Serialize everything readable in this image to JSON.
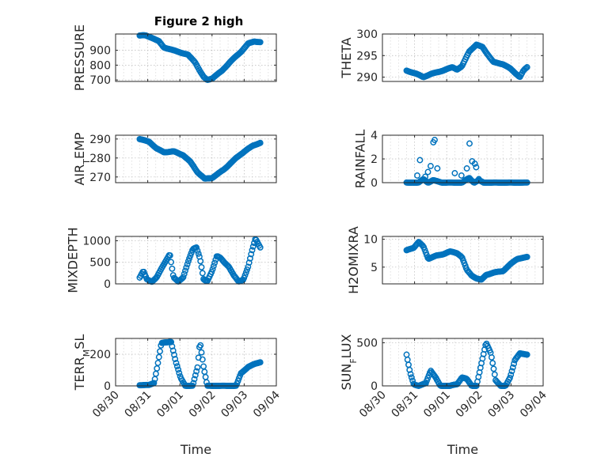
{
  "figure": {
    "title": "Figure 2 high",
    "colors": {
      "series": "#0072bd",
      "axes": "#262626",
      "grid": "#b8b8b8",
      "background": "#ffffff"
    }
  },
  "chart_data": [
    {
      "type": "scatter",
      "title": "Figure 2 high",
      "xlabel": "",
      "ylabel": "PRESSURE",
      "xlim": [
        "2016-08-30",
        "2016-09-04"
      ],
      "ylim": [
        690,
        1010
      ],
      "yticks": [
        700,
        800,
        900
      ],
      "ytick_labels": [
        "700",
        "800",
        "900"
      ],
      "grid": true,
      "marker": "open-circle",
      "x_range": [
        "2016-08-30T18:00",
        "2016-09-03T12:00"
      ],
      "shape": [
        [
          0,
          1000
        ],
        [
          0.05,
          1000
        ],
        [
          0.1,
          985
        ],
        [
          0.16,
          960
        ],
        [
          0.2,
          920
        ],
        [
          0.26,
          905
        ],
        [
          0.32,
          890
        ],
        [
          0.4,
          870
        ],
        [
          0.46,
          820
        ],
        [
          0.5,
          760
        ],
        [
          0.53,
          720
        ],
        [
          0.56,
          700
        ],
        [
          0.6,
          710
        ],
        [
          0.68,
          760
        ],
        [
          0.76,
          830
        ],
        [
          0.84,
          890
        ],
        [
          0.9,
          945
        ],
        [
          0.95,
          960
        ],
        [
          1,
          955
        ]
      ]
    },
    {
      "type": "scatter",
      "xlabel": "",
      "ylabel": "THETA",
      "xlim": [
        "2016-08-30",
        "2016-09-04"
      ],
      "ylim": [
        289,
        300
      ],
      "yticks": [
        290,
        295,
        300
      ],
      "ytick_labels": [
        "290",
        "295",
        "300"
      ],
      "grid": true,
      "marker": "open-circle",
      "x_range": [
        "2016-08-30T18:00",
        "2016-09-03T12:00"
      ],
      "shape": [
        [
          0,
          291.5
        ],
        [
          0.08,
          290.8
        ],
        [
          0.14,
          290
        ],
        [
          0.2,
          290.7
        ],
        [
          0.3,
          291.5
        ],
        [
          0.38,
          292.3
        ],
        [
          0.42,
          291.8
        ],
        [
          0.46,
          292.5
        ],
        [
          0.52,
          296
        ],
        [
          0.58,
          297.5
        ],
        [
          0.63,
          297
        ],
        [
          0.68,
          295
        ],
        [
          0.72,
          293.5
        ],
        [
          0.8,
          293
        ],
        [
          0.86,
          292
        ],
        [
          0.9,
          291
        ],
        [
          0.94,
          290
        ],
        [
          0.97,
          291.5
        ],
        [
          1,
          292.3
        ]
      ]
    },
    {
      "type": "scatter",
      "xlabel": "",
      "ylabel": "AIR_TEMP",
      "xlim": [
        "2016-08-30",
        "2016-09-04"
      ],
      "ylim": [
        267,
        292
      ],
      "yticks": [
        270,
        280,
        290
      ],
      "ytick_labels": [
        "270",
        "280",
        "290"
      ],
      "grid": true,
      "marker": "open-circle",
      "x_range": [
        "2016-08-30T18:00",
        "2016-09-03T12:00"
      ],
      "shape": [
        [
          0,
          290
        ],
        [
          0.08,
          288.5
        ],
        [
          0.14,
          285
        ],
        [
          0.2,
          283
        ],
        [
          0.28,
          283.5
        ],
        [
          0.36,
          281.5
        ],
        [
          0.42,
          278
        ],
        [
          0.48,
          272.5
        ],
        [
          0.54,
          269
        ],
        [
          0.6,
          269.5
        ],
        [
          0.7,
          274
        ],
        [
          0.8,
          280
        ],
        [
          0.88,
          284
        ],
        [
          0.94,
          286.5
        ],
        [
          1,
          288
        ]
      ]
    },
    {
      "type": "scatter",
      "xlabel": "",
      "ylabel": "RAINFALL",
      "xlim": [
        "2016-08-30",
        "2016-09-04"
      ],
      "ylim": [
        0,
        4
      ],
      "yticks": [
        0,
        2,
        4
      ],
      "ytick_labels": [
        "0",
        "2",
        "4"
      ],
      "grid": true,
      "marker": "open-circle",
      "x_range": [
        "2016-08-30T18:00",
        "2016-09-03T12:00"
      ],
      "shape": [
        [
          0,
          0
        ],
        [
          0.1,
          0
        ],
        [
          0.14,
          0.3
        ],
        [
          0.18,
          0
        ],
        [
          0.22,
          0.2
        ],
        [
          0.3,
          0
        ],
        [
          0.38,
          0
        ],
        [
          0.46,
          0
        ],
        [
          0.52,
          0.4
        ],
        [
          0.56,
          0
        ],
        [
          0.6,
          0.2
        ],
        [
          0.64,
          0
        ],
        [
          0.7,
          0
        ],
        [
          1,
          0
        ]
      ],
      "spikes": [
        {
          "x": "2016-08-31T02:00",
          "y": 0.6
        },
        {
          "x": "2016-08-31T04:00",
          "y": 1.9
        },
        {
          "x": "2016-08-31T08:00",
          "y": 0.5
        },
        {
          "x": "2016-08-31T10:00",
          "y": 0.9
        },
        {
          "x": "2016-08-31T12:00",
          "y": 1.4
        },
        {
          "x": "2016-08-31T14:00",
          "y": 3.4
        },
        {
          "x": "2016-08-31T15:00",
          "y": 3.6
        },
        {
          "x": "2016-08-31T17:00",
          "y": 1.2
        },
        {
          "x": "2016-09-01T06:00",
          "y": 0.8
        },
        {
          "x": "2016-09-01T11:00",
          "y": 0.6
        },
        {
          "x": "2016-09-01T15:00",
          "y": 1.2
        },
        {
          "x": "2016-09-01T17:00",
          "y": 3.3
        },
        {
          "x": "2016-09-01T19:00",
          "y": 1.8
        },
        {
          "x": "2016-09-01T21:00",
          "y": 1.6
        },
        {
          "x": "2016-09-01T22:00",
          "y": 1.3
        },
        {
          "x": "2016-09-02T00:00",
          "y": 0.3
        }
      ]
    },
    {
      "type": "scatter",
      "xlabel": "",
      "ylabel": "MIXDEPTH",
      "xlim": [
        "2016-08-30",
        "2016-09-04"
      ],
      "ylim": [
        0,
        1100
      ],
      "yticks": [
        0,
        500,
        1000
      ],
      "ytick_labels": [
        "0",
        "500",
        "1000"
      ],
      "grid": true,
      "marker": "open-circle",
      "x_range": [
        "2016-08-30T18:00",
        "2016-09-03T12:00"
      ],
      "shape": [
        [
          0,
          150
        ],
        [
          0.03,
          300
        ],
        [
          0.06,
          100
        ],
        [
          0.1,
          50
        ],
        [
          0.14,
          150
        ],
        [
          0.18,
          350
        ],
        [
          0.22,
          550
        ],
        [
          0.25,
          700
        ],
        [
          0.28,
          150
        ],
        [
          0.32,
          50
        ],
        [
          0.36,
          150
        ],
        [
          0.4,
          500
        ],
        [
          0.44,
          800
        ],
        [
          0.47,
          850
        ],
        [
          0.5,
          600
        ],
        [
          0.53,
          100
        ],
        [
          0.56,
          50
        ],
        [
          0.6,
          300
        ],
        [
          0.64,
          650
        ],
        [
          0.67,
          600
        ],
        [
          0.7,
          500
        ],
        [
          0.74,
          400
        ],
        [
          0.78,
          200
        ],
        [
          0.82,
          50
        ],
        [
          0.86,
          100
        ],
        [
          0.9,
          400
        ],
        [
          0.93,
          750
        ],
        [
          0.96,
          1050
        ],
        [
          1,
          850
        ]
      ]
    },
    {
      "type": "scatter",
      "xlabel": "",
      "ylabel": "H2OMIXRA",
      "xlim": [
        "2016-08-30",
        "2016-09-04"
      ],
      "ylim": [
        2,
        10.5
      ],
      "yticks": [
        5,
        10
      ],
      "ytick_labels": [
        "5",
        "10"
      ],
      "grid": true,
      "marker": "open-circle",
      "x_range": [
        "2016-08-30T18:00",
        "2016-09-03T12:00"
      ],
      "shape": [
        [
          0,
          8
        ],
        [
          0.06,
          8.5
        ],
        [
          0.1,
          9.5
        ],
        [
          0.14,
          8.7
        ],
        [
          0.18,
          6.5
        ],
        [
          0.24,
          7
        ],
        [
          0.3,
          7.3
        ],
        [
          0.36,
          7.8
        ],
        [
          0.42,
          7.5
        ],
        [
          0.46,
          6.8
        ],
        [
          0.5,
          4.5
        ],
        [
          0.54,
          3.5
        ],
        [
          0.58,
          3
        ],
        [
          0.62,
          2.7
        ],
        [
          0.66,
          3.6
        ],
        [
          0.72,
          4
        ],
        [
          0.8,
          4.3
        ],
        [
          0.86,
          5.5
        ],
        [
          0.92,
          6.5
        ],
        [
          1,
          6.8
        ]
      ]
    },
    {
      "type": "scatter",
      "xlabel": "Time",
      "ylabel": "TERR_MSL",
      "xlim": [
        "2016-08-30",
        "2016-09-04"
      ],
      "ylim": [
        0,
        300
      ],
      "yticks": [
        0,
        200
      ],
      "ytick_labels": [
        "0",
        "200"
      ],
      "xticks": [
        "2016-08-30",
        "2016-08-31",
        "2016-09-01",
        "2016-09-02",
        "2016-09-03",
        "2016-09-04"
      ],
      "xtick_labels": [
        "08/30",
        "08/31",
        "09/01",
        "09/02",
        "09/03",
        "09/04"
      ],
      "grid": true,
      "marker": "open-circle",
      "x_range": [
        "2016-08-30T18:00",
        "2016-09-03T12:00"
      ],
      "shape": [
        [
          0,
          5
        ],
        [
          0.08,
          5
        ],
        [
          0.12,
          20
        ],
        [
          0.15,
          140
        ],
        [
          0.18,
          270
        ],
        [
          0.26,
          280
        ],
        [
          0.3,
          150
        ],
        [
          0.34,
          50
        ],
        [
          0.38,
          0
        ],
        [
          0.44,
          0
        ],
        [
          0.48,
          120
        ],
        [
          0.5,
          280
        ],
        [
          0.53,
          120
        ],
        [
          0.56,
          0
        ],
        [
          0.7,
          0
        ],
        [
          0.8,
          0
        ],
        [
          0.84,
          80
        ],
        [
          0.9,
          120
        ],
        [
          0.96,
          140
        ],
        [
          1,
          150
        ]
      ]
    },
    {
      "type": "scatter",
      "xlabel": "Time",
      "ylabel": "SUN_FLUX",
      "xlim": [
        "2016-08-30",
        "2016-09-04"
      ],
      "ylim": [
        0,
        550
      ],
      "yticks": [
        0,
        500
      ],
      "ytick_labels": [
        "0",
        "500"
      ],
      "xticks": [
        "2016-08-30",
        "2016-08-31",
        "2016-09-01",
        "2016-09-02",
        "2016-09-03",
        "2016-09-04"
      ],
      "xtick_labels": [
        "08/30",
        "08/31",
        "09/01",
        "09/02",
        "09/03",
        "09/04"
      ],
      "grid": true,
      "marker": "open-circle",
      "x_range": [
        "2016-08-30T18:00",
        "2016-09-03T12:00"
      ],
      "shape": [
        [
          0,
          360
        ],
        [
          0.03,
          150
        ],
        [
          0.06,
          20
        ],
        [
          0.1,
          0
        ],
        [
          0.16,
          30
        ],
        [
          0.2,
          180
        ],
        [
          0.24,
          100
        ],
        [
          0.28,
          0
        ],
        [
          0.36,
          0
        ],
        [
          0.42,
          20
        ],
        [
          0.46,
          100
        ],
        [
          0.5,
          80
        ],
        [
          0.54,
          0
        ],
        [
          0.58,
          0
        ],
        [
          0.62,
          250
        ],
        [
          0.66,
          500
        ],
        [
          0.7,
          380
        ],
        [
          0.74,
          60
        ],
        [
          0.78,
          0
        ],
        [
          0.82,
          0
        ],
        [
          0.86,
          100
        ],
        [
          0.9,
          300
        ],
        [
          0.94,
          380
        ],
        [
          1,
          360
        ]
      ]
    }
  ]
}
